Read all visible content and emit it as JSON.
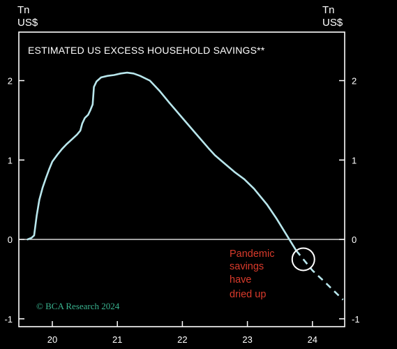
{
  "chart_data": {
    "type": "line",
    "title": "ESTIMATED US EXCESS HOUSEHOLD SAVINGS**",
    "ylabel_left": [
      "Tn",
      "US$"
    ],
    "ylabel_right": [
      "Tn",
      "US$"
    ],
    "ylim": [
      -1,
      2.3
    ],
    "yticks": [
      2,
      1,
      0,
      -1
    ],
    "ytick_labels": [
      "2",
      "1",
      "0",
      "-1"
    ],
    "xlim": [
      19.5,
      24.5
    ],
    "xticks": [
      20,
      21,
      22,
      23,
      24
    ],
    "xtick_labels": [
      "20",
      "21",
      "22",
      "23",
      "24"
    ],
    "zero_line": true,
    "series": [
      {
        "style": "solid",
        "color": "#b8e6ec",
        "x": [
          19.62,
          19.68,
          19.72,
          19.76,
          19.8,
          19.85,
          19.9,
          19.95,
          20.0,
          20.08,
          20.15,
          20.22,
          20.3,
          20.38,
          20.43,
          20.46,
          20.5,
          20.55,
          20.58,
          20.62,
          20.64,
          20.68,
          20.75,
          20.85,
          20.95,
          21.05,
          21.15,
          21.25,
          21.35,
          21.5,
          21.65,
          21.8,
          22.0,
          22.2,
          22.4,
          22.5,
          22.6,
          22.8,
          22.95,
          23.1,
          23.3,
          23.45,
          23.6,
          23.75
        ],
        "y": [
          0.0,
          0.02,
          0.05,
          0.3,
          0.5,
          0.65,
          0.77,
          0.88,
          0.98,
          1.07,
          1.14,
          1.2,
          1.26,
          1.32,
          1.37,
          1.46,
          1.53,
          1.57,
          1.62,
          1.7,
          1.92,
          1.99,
          2.04,
          2.06,
          2.07,
          2.09,
          2.1,
          2.09,
          2.06,
          2.0,
          1.87,
          1.72,
          1.53,
          1.34,
          1.15,
          1.06,
          0.99,
          0.85,
          0.76,
          0.64,
          0.44,
          0.26,
          0.06,
          -0.14
        ]
      },
      {
        "style": "dashed",
        "color": "#b8e6ec",
        "x": [
          23.75,
          24.0,
          24.22,
          24.47
        ],
        "y": [
          -0.14,
          -0.39,
          -0.56,
          -0.76
        ]
      }
    ],
    "annotations": {
      "callout_lines": [
        "Pandemic",
        "savings",
        "have",
        "dried up"
      ],
      "callout_color": "#d93a2b",
      "circle_center": [
        23.86,
        -0.25
      ],
      "source": "© BCA Research 2024",
      "source_color": "#39b38f"
    }
  }
}
